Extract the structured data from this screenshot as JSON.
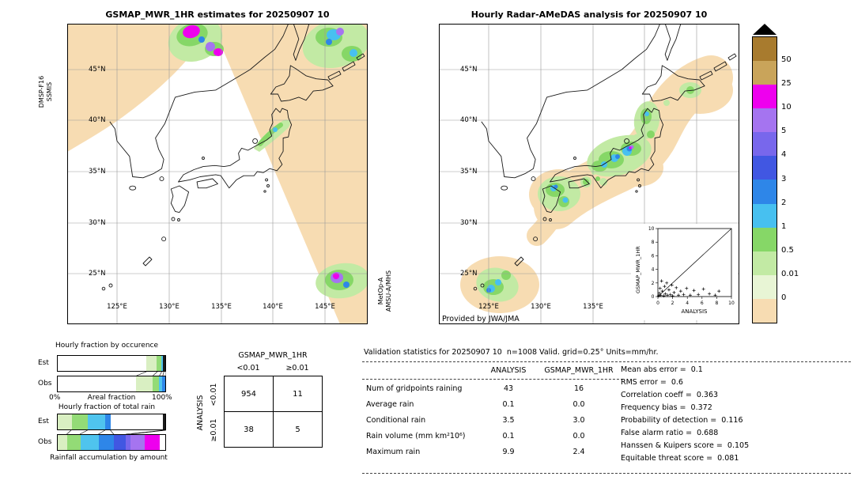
{
  "left_map": {
    "title": "GSMAP_MWR_1HR estimates for 20250907 10",
    "sensor_label_line1": "DMSP-F16",
    "sensor_label_line2": "SSMIS",
    "sensor2_label_line1": "MetOp-A",
    "sensor2_label_line2": "AMSU-A/MHS",
    "lat_ticks": [
      "45°N",
      "40°N",
      "35°N",
      "30°N",
      "25°N"
    ],
    "lon_ticks": [
      "125°E",
      "130°E",
      "135°E",
      "140°E",
      "145°E"
    ]
  },
  "right_map": {
    "title": "Hourly Radar-AMeDAS analysis for 20250907 10",
    "credit": "Provided by JWA/JMA",
    "lat_ticks": [
      "45°N",
      "40°N",
      "35°N",
      "30°N",
      "25°N"
    ],
    "lon_ticks": [
      "125°E",
      "130°E",
      "135°E",
      "140°E",
      "145°E"
    ]
  },
  "colorbar": {
    "units": "mm/hr",
    "tick_labels": [
      "50",
      "25",
      "10",
      "5",
      "4",
      "3",
      "2",
      "1",
      "0.5",
      "0.01",
      "0"
    ],
    "segment_colors": [
      "#a87b2e",
      "#c9a45a",
      "#ee00ee",
      "#a574f0",
      "#7867ec",
      "#4157e2",
      "#2e86e8",
      "#47c0f0",
      "#86d767",
      "#c2eaa4",
      "#e8f5d5",
      "#f7dcb2"
    ],
    "overflow_marker": "black-triangle"
  },
  "chart_data": {
    "occurrence_bars": {
      "type": "bar",
      "stacked": true,
      "title": "Hourly fraction by occurence",
      "axis": {
        "left": "0%",
        "center": "Areal fraction",
        "right": "100%"
      },
      "rows": [
        {
          "label": "Est",
          "segments": [
            {
              "color": "#ffffff",
              "pct": 82
            },
            {
              "color": "#d9efc2",
              "pct": 10
            },
            {
              "color": "#93db76",
              "pct": 4
            },
            {
              "color": "#4fc4ee",
              "pct": 2
            },
            {
              "color": "#1a1a1a",
              "pct": 2
            }
          ]
        },
        {
          "label": "Obs",
          "segments": [
            {
              "color": "#ffffff",
              "pct": 73
            },
            {
              "color": "#d9efc2",
              "pct": 15
            },
            {
              "color": "#93db76",
              "pct": 6
            },
            {
              "color": "#4fc4ee",
              "pct": 3
            },
            {
              "color": "#2e86e8",
              "pct": 3
            }
          ]
        }
      ]
    },
    "total_rain_bars": {
      "type": "bar",
      "stacked": true,
      "title": "Hourly fraction of total rain",
      "caption": "Rainfall accumulation by amount",
      "rows": [
        {
          "label": "Est",
          "segments": [
            {
              "color": "#d9efc2",
              "pct": 13
            },
            {
              "color": "#93db76",
              "pct": 15
            },
            {
              "color": "#4fc4ee",
              "pct": 16
            },
            {
              "color": "#2e86e8",
              "pct": 5
            },
            {
              "color": "#ffffff",
              "pct": 49
            },
            {
              "color": "#1a1a1a",
              "pct": 2
            }
          ]
        },
        {
          "label": "Obs",
          "segments": [
            {
              "color": "#d9efc2",
              "pct": 9
            },
            {
              "color": "#93db76",
              "pct": 12
            },
            {
              "color": "#4fc4ee",
              "pct": 17
            },
            {
              "color": "#2e86e8",
              "pct": 14
            },
            {
              "color": "#4157e2",
              "pct": 11
            },
            {
              "color": "#7867ec",
              "pct": 5
            },
            {
              "color": "#a574f0",
              "pct": 13
            },
            {
              "color": "#ee00ee",
              "pct": 14
            },
            {
              "color": "#ffffff",
              "pct": 5
            }
          ]
        }
      ]
    },
    "contingency_table": {
      "type": "table",
      "col_header": "GSMAP_MWR_1HR",
      "row_header": "ANALYSIS",
      "col_labels": [
        "<0.01",
        "≥0.01"
      ],
      "row_labels": [
        "<0.01",
        "≥0.01"
      ],
      "values": [
        [
          954,
          11
        ],
        [
          38,
          5
        ]
      ]
    },
    "scatter_inset": {
      "type": "scatter",
      "xlabel": "ANALYSIS",
      "ylabel": "GSMAP_MWR_1HR",
      "xlim": [
        0,
        10
      ],
      "ylim": [
        0,
        10
      ],
      "xticks": [
        0,
        2,
        4,
        6,
        8,
        10
      ],
      "yticks": [
        0,
        2,
        4,
        6,
        8,
        10
      ],
      "identity_line": true,
      "points": [
        [
          0.1,
          0.1
        ],
        [
          0.2,
          0.5
        ],
        [
          0.3,
          1.2
        ],
        [
          0.4,
          0.2
        ],
        [
          0.5,
          2.3
        ],
        [
          0.6,
          0.8
        ],
        [
          0.8,
          0.1
        ],
        [
          0.9,
          1.5
        ],
        [
          1.0,
          0.4
        ],
        [
          1.2,
          2.0
        ],
        [
          1.3,
          0.2
        ],
        [
          1.5,
          1.0
        ],
        [
          1.7,
          0.3
        ],
        [
          1.9,
          1.7
        ],
        [
          2.0,
          0.1
        ],
        [
          2.2,
          0.6
        ],
        [
          2.5,
          1.3
        ],
        [
          2.8,
          0.2
        ],
        [
          3.1,
          0.8
        ],
        [
          3.5,
          0.3
        ],
        [
          3.9,
          1.2
        ],
        [
          4.4,
          0.2
        ],
        [
          4.9,
          0.9
        ],
        [
          5.5,
          0.3
        ],
        [
          6.2,
          1.1
        ],
        [
          7.0,
          0.4
        ],
        [
          7.8,
          0.2
        ],
        [
          8.3,
          0.8
        ]
      ]
    }
  },
  "validation": {
    "title": "Validation statistics for 20250907 10  n=1008 Valid. grid=0.25° Units=mm/hr.",
    "columns": [
      "ANALYSIS",
      "GSMAP_MWR_1HR"
    ],
    "rows": [
      {
        "label": "Num of gridpoints raining",
        "analysis": "43",
        "gsmap": "16"
      },
      {
        "label": "Average rain",
        "analysis": "0.1",
        "gsmap": "0.0"
      },
      {
        "label": "Conditional rain",
        "analysis": "3.5",
        "gsmap": "3.0"
      },
      {
        "label": "Rain volume (mm km²10⁶)",
        "analysis": "0.1",
        "gsmap": "0.0"
      },
      {
        "label": "Maximum rain",
        "analysis": "9.9",
        "gsmap": "2.4"
      }
    ],
    "stats": [
      {
        "label": "Mean abs error",
        "value": "0.1"
      },
      {
        "label": "RMS error",
        "value": "0.6"
      },
      {
        "label": "Correlation coeff",
        "value": "0.363"
      },
      {
        "label": "Frequency bias",
        "value": "0.372"
      },
      {
        "label": "Probability of detection",
        "value": "0.116"
      },
      {
        "label": "False alarm ratio",
        "value": "0.688"
      },
      {
        "label": "Hanssen & Kuipers score",
        "value": "0.105"
      },
      {
        "label": "Equitable threat score",
        "value": "0.081"
      }
    ]
  }
}
